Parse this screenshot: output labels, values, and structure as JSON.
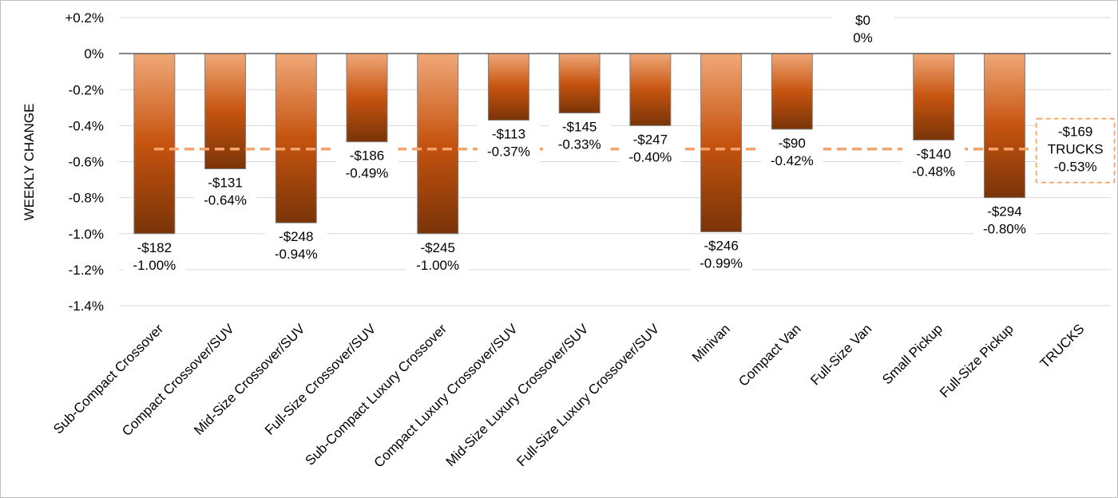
{
  "chart_data": {
    "type": "bar",
    "title": "",
    "xlabel": "",
    "ylabel": "WEEKLY CHANGE",
    "ylim": [
      -1.4,
      0.2
    ],
    "yticks": [
      "+0.2%",
      "0%",
      "-0.2%",
      "-0.4%",
      "-0.6%",
      "-0.8%",
      "-1.0%",
      "-1.2%",
      "-1.4%"
    ],
    "ytick_values": [
      0.2,
      0,
      -0.2,
      -0.4,
      -0.6,
      -0.8,
      -1.0,
      -1.2,
      -1.4
    ],
    "grid": true,
    "legend": "none",
    "categories": [
      "Sub-Compact Crossover",
      "Compact Crossover/SUV",
      "Mid-Size Crossover/SUV",
      "Full-Size Crossover/SUV",
      "Sub-Compact Luxury Crossover",
      "Compact Luxury Crossover/SUV",
      "Mid-Size Luxury Crossover/SUV",
      "Full-Size Luxury Crossover/SUV",
      "Minivan",
      "Compact Van",
      "Full-Size Van",
      "Small Pickup",
      "Full-Size Pickup",
      "TRUCKS"
    ],
    "values": [
      -1.0,
      -0.64,
      -0.94,
      -0.49,
      -1.0,
      -0.37,
      -0.33,
      -0.4,
      -0.99,
      -0.42,
      0,
      -0.48,
      -0.8,
      null
    ],
    "dollar_labels": [
      "-$182",
      "-$131",
      "-$248",
      "-$186",
      "-$245",
      "-$113",
      "-$145",
      "-$247",
      "-$246",
      "-$90",
      "$0",
      "-$140",
      "-$294",
      "-$169"
    ],
    "percent_labels": [
      "-1.00%",
      "-0.64%",
      "-0.94%",
      "-0.49%",
      "-1.00%",
      "-0.37%",
      "-0.33%",
      "-0.40%",
      "-0.99%",
      "-0.42%",
      "0%",
      "-0.48%",
      "-0.80%",
      "-0.53%"
    ],
    "average": {
      "value": -0.53,
      "dollar_label": "-$169",
      "name": "TRUCKS",
      "percent_label": "-0.53%"
    },
    "colors": {
      "bar_top": "#f0a878",
      "bar_mid": "#c65410",
      "bar_bottom": "#7a3408",
      "bar_stroke": "#808080",
      "average_line": "#f4a36a",
      "gridline": "#d9d9d9",
      "zero_axis": "#404040"
    }
  }
}
